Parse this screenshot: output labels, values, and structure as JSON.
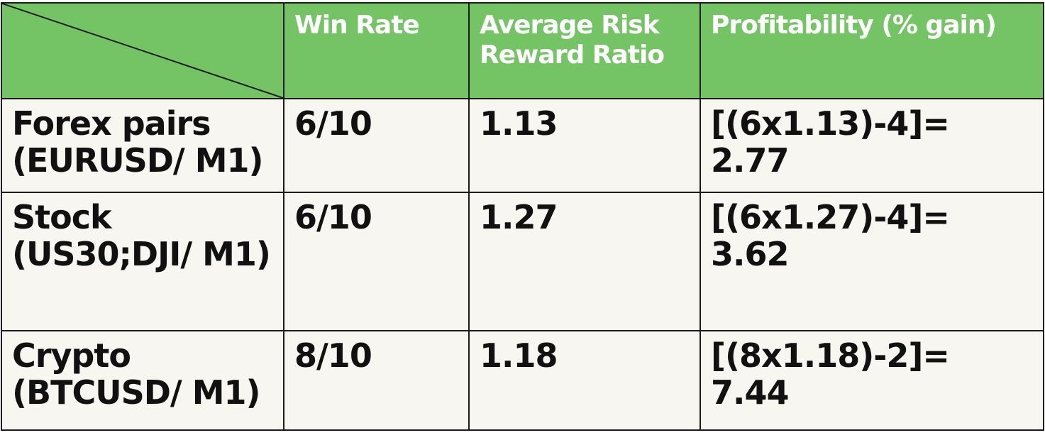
{
  "table": {
    "headers": [
      "",
      "Win Rate",
      "Average Risk Reward Ratio",
      "Profitability (% gain)"
    ],
    "rows": [
      {
        "market": "Forex pairs (EURUSD/ M1)",
        "win_rate": "6/10",
        "risk_reward": "1.13",
        "profitability": "[(6x1.13)-4]= 2.77"
      },
      {
        "market": "Stock (US30;DJI/ M1)",
        "win_rate": "6/10",
        "risk_reward": "1.27",
        "profitability": "[(6x1.27)-4]= 3.62"
      },
      {
        "market": "Crypto (BTCUSD/ M1)",
        "win_rate": "8/10",
        "risk_reward": "1.18",
        "profitability": "[(8x1.18)-2]= 7.44"
      }
    ]
  },
  "colors": {
    "header_bg": "#74c364",
    "header_text": "#ffffff",
    "body_bg": "#f7f6f1",
    "border": "#1b1b1b"
  }
}
